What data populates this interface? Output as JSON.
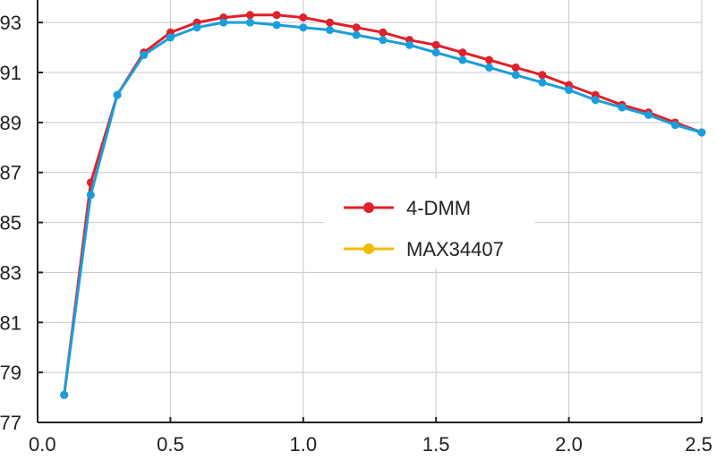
{
  "chart_data": {
    "type": "line",
    "title": "",
    "xlabel": "",
    "ylabel": "",
    "xlim": [
      0.0,
      2.5
    ],
    "ylim": [
      77,
      93.9
    ],
    "x_ticks": [
      "0.0",
      "0.5",
      "1.0",
      "1.5",
      "2.0",
      "2.5"
    ],
    "y_ticks": [
      "77",
      "79",
      "81",
      "83",
      "85",
      "87",
      "89",
      "91",
      "93"
    ],
    "grid": true,
    "legend_position": "center-right",
    "x": [
      0.1,
      0.2,
      0.3,
      0.4,
      0.5,
      0.6,
      0.7,
      0.8,
      0.9,
      1.0,
      1.1,
      1.2,
      1.3,
      1.4,
      1.5,
      1.6,
      1.7,
      1.8,
      1.9,
      2.0,
      2.1,
      2.2,
      2.3,
      2.4,
      2.5
    ],
    "series": [
      {
        "name": "4-DMM",
        "legend_color": "#e0202a",
        "line_color": "#e0202a",
        "values": [
          78.1,
          86.6,
          90.1,
          91.8,
          92.6,
          93.0,
          93.2,
          93.3,
          93.3,
          93.2,
          93.0,
          92.8,
          92.6,
          92.3,
          92.1,
          91.8,
          91.5,
          91.2,
          90.9,
          90.5,
          90.1,
          89.7,
          89.4,
          89.0,
          88.6
        ]
      },
      {
        "name": "MAX34407",
        "legend_color": "#f5b800",
        "line_color": "#1a9edb",
        "values": [
          78.1,
          86.1,
          90.1,
          91.7,
          92.4,
          92.8,
          93.0,
          93.0,
          92.9,
          92.8,
          92.7,
          92.5,
          92.3,
          92.1,
          91.8,
          91.5,
          91.2,
          90.9,
          90.6,
          90.3,
          89.9,
          89.6,
          89.3,
          88.9,
          88.6
        ]
      }
    ]
  }
}
